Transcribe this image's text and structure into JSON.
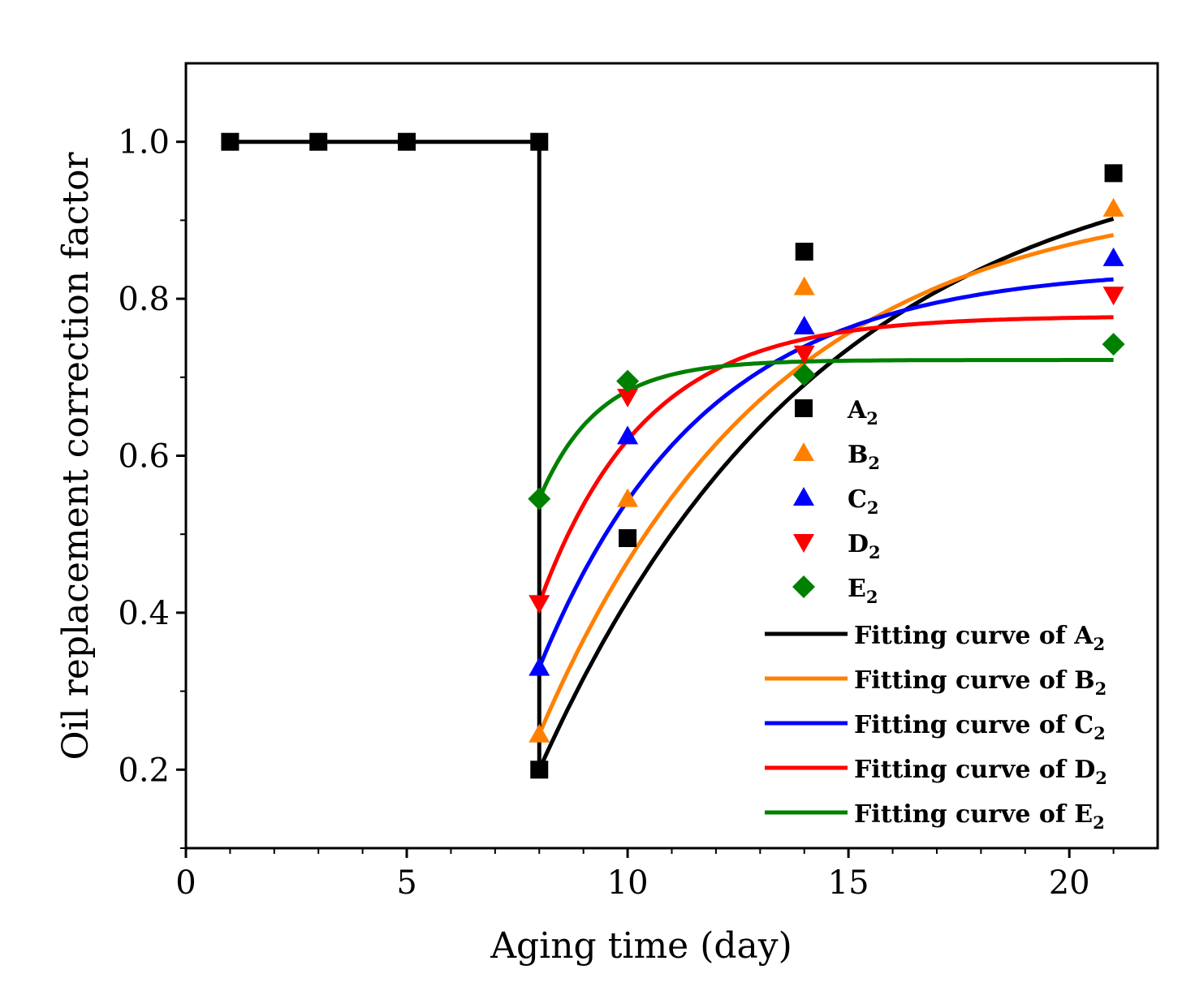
{
  "chart_data": {
    "type": "scatter",
    "xlabel": "Aging time (day)",
    "ylabel": "Oil replacement correction factor",
    "xlim": [
      0,
      22
    ],
    "ylim": [
      0.1,
      1.1
    ],
    "xticks": [
      0,
      5,
      10,
      15,
      20
    ],
    "yticks": [
      0.2,
      0.4,
      0.6,
      0.8,
      1.0
    ],
    "xtick_labels": [
      "0",
      "5",
      "10",
      "15",
      "20"
    ],
    "ytick_labels": [
      "0.2",
      "0.4",
      "0.6",
      "0.8",
      "1.0"
    ],
    "grid": false,
    "legend_position": "lower-right",
    "baseline": {
      "x": [
        1,
        3,
        5,
        8
      ],
      "y": [
        1.0,
        1.0,
        1.0,
        1.0
      ],
      "drop_x": 8,
      "drop_to": 0.2
    },
    "series": [
      {
        "key": "A",
        "name": "A",
        "sub": "2",
        "marker": "square",
        "color": "#000000",
        "x": [
          8,
          10,
          14,
          21
        ],
        "y": [
          0.2,
          0.495,
          0.86,
          0.96
        ],
        "fit": {
          "y0": 0.2,
          "yinf": 1.01,
          "k": 0.155
        },
        "fit_name": "Fitting curve of A",
        "fit_sub": "2"
      },
      {
        "key": "B",
        "name": "B",
        "sub": "2",
        "marker": "triangle-up",
        "color": "#ff8000",
        "x": [
          8,
          10,
          14,
          21
        ],
        "y": [
          0.245,
          0.545,
          0.815,
          0.915
        ],
        "fit": {
          "y0": 0.245,
          "yinf": 0.94,
          "k": 0.19
        },
        "fit_name": "Fitting curve of B",
        "fit_sub": "2"
      },
      {
        "key": "C",
        "name": "C",
        "sub": "2",
        "marker": "triangle-up",
        "color": "#0000ff",
        "x": [
          8,
          10,
          14,
          21
        ],
        "y": [
          0.33,
          0.625,
          0.765,
          0.852
        ],
        "fit": {
          "y0": 0.33,
          "yinf": 0.84,
          "k": 0.27
        },
        "fit_name": "Fitting curve of C",
        "fit_sub": "2"
      },
      {
        "key": "D",
        "name": "D",
        "sub": "2",
        "marker": "triangle-down",
        "color": "#ff0000",
        "x": [
          8,
          10,
          14,
          21
        ],
        "y": [
          0.412,
          0.675,
          0.73,
          0.805
        ],
        "fit": {
          "y0": 0.412,
          "yinf": 0.778,
          "k": 0.42
        },
        "fit_name": "Fitting curve of D",
        "fit_sub": "2"
      },
      {
        "key": "E",
        "name": "E",
        "sub": "2",
        "marker": "diamond",
        "color": "#008000",
        "x": [
          8,
          10,
          14,
          21
        ],
        "y": [
          0.545,
          0.695,
          0.703,
          0.742
        ],
        "fit": {
          "y0": 0.545,
          "yinf": 0.722,
          "k": 0.75
        },
        "fit_name": "Fitting curve of E",
        "fit_sub": "2"
      }
    ]
  }
}
